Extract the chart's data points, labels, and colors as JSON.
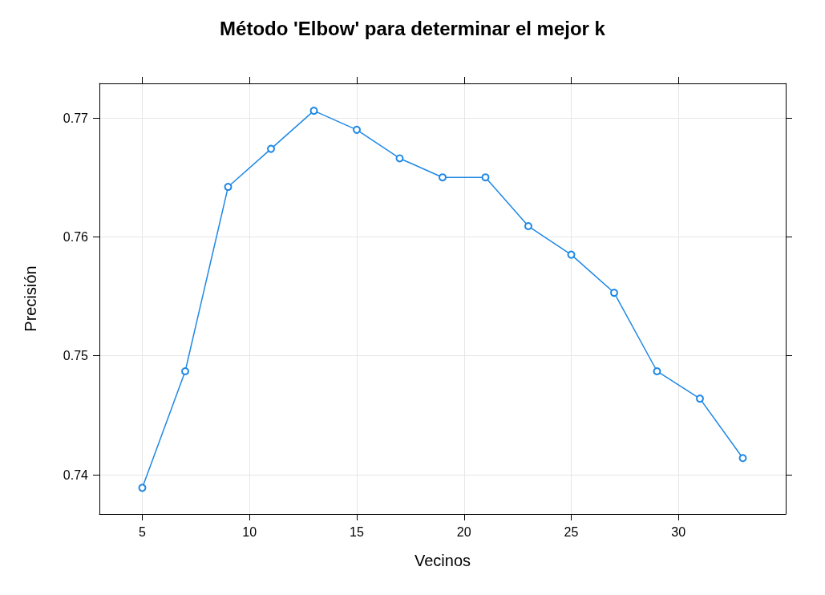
{
  "chart_data": {
    "type": "line",
    "title": "Método 'Elbow' para determinar el mejor k",
    "xlabel": "Vecinos",
    "ylabel": "Precisión",
    "x": [
      5,
      7,
      9,
      11,
      13,
      15,
      17,
      19,
      21,
      23,
      25,
      27,
      29,
      31,
      33
    ],
    "series": [
      {
        "color": "#1e88e5",
        "values": [
          0.7389,
          0.7487,
          0.7642,
          0.7674,
          0.7706,
          0.769,
          0.7666,
          0.765,
          0.765,
          0.7609,
          0.7585,
          0.7553,
          0.7487,
          0.7464,
          0.7414
        ]
      }
    ],
    "xlim": [
      3,
      35
    ],
    "xticks": [
      5,
      10,
      15,
      20,
      25,
      30
    ],
    "ylim": [
      0.7367,
      0.7729
    ],
    "yticks": [
      0.74,
      0.75,
      0.76,
      0.77
    ],
    "grid": true,
    "marker": "circle",
    "line_style": "solid"
  }
}
